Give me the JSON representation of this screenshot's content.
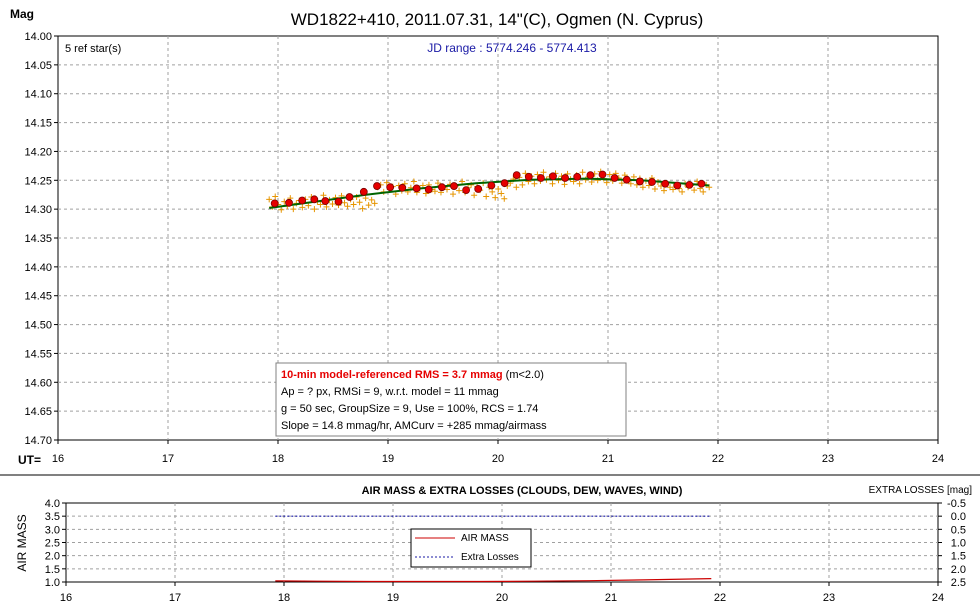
{
  "chart_data": [
    {
      "type": "scatter",
      "title": "WD1822+410, 2011.07.31, 14\"(C), Ogmen (N. Cyprus)",
      "ylabel": "Mag",
      "xlabel": "UT=",
      "xlim": [
        16,
        24
      ],
      "ylim": [
        14.7,
        14.0
      ],
      "y_inverted": true,
      "grid": true,
      "x_ticks": [
        "16",
        "17",
        "18",
        "19",
        "20",
        "21",
        "22",
        "23",
        "24"
      ],
      "y_ticks": [
        "14.00",
        "14.05",
        "14.10",
        "14.15",
        "14.20",
        "14.25",
        "14.30",
        "14.35",
        "14.40",
        "14.45",
        "14.50",
        "14.55",
        "14.60",
        "14.65",
        "14.70"
      ],
      "ref_stars_text": "5 ref star(s)",
      "jd_range_text": "JD range : 5774.246 - 5774.413",
      "annotation": {
        "line1_red": "10-min model-referenced RMS = 3.7 mmag",
        "line1_rest": " (m<2.0)",
        "line2": "Ap = ? px, RMSi = 9, w.r.t. model = 11 mmag",
        "line3": "g = 50 sec, GroupSize = 9, Use = 100%, RCS = 1.74",
        "line4": "Slope = 14.8 mmag/hr, AMCurv = +285 mmag/airmass"
      },
      "series": [
        {
          "kind": "individual",
          "marker": "plus",
          "color": "#e69500",
          "x_start": 17.92,
          "x_end": 21.92,
          "y_values": [
            14.283,
            14.296,
            14.278,
            14.292,
            14.301,
            14.287,
            14.295,
            14.281,
            14.3,
            14.29,
            14.285,
            14.297,
            14.283,
            14.294,
            14.279,
            14.3,
            14.287,
            14.292,
            14.276,
            14.296,
            14.284,
            14.291,
            14.28,
            14.293,
            14.277,
            14.289,
            14.295,
            14.283,
            14.292,
            14.279,
            14.288,
            14.299,
            14.281,
            14.293,
            14.284,
            14.29,
            14.262,
            14.258,
            14.27,
            14.254,
            14.266,
            14.261,
            14.274,
            14.259,
            14.268,
            14.256,
            14.27,
            14.263,
            14.252,
            14.271,
            14.264,
            14.259,
            14.273,
            14.258,
            14.266,
            14.269,
            14.255,
            14.271,
            14.262,
            14.266,
            14.257,
            14.274,
            14.26,
            14.268,
            14.252,
            14.271,
            14.263,
            14.258,
            14.276,
            14.261,
            14.267,
            14.255,
            14.278,
            14.262,
            14.27,
            14.28,
            14.265,
            14.273,
            14.282,
            14.26,
            14.255,
            14.248,
            14.262,
            14.245,
            14.258,
            14.238,
            14.252,
            14.243,
            14.256,
            14.24,
            14.251,
            14.236,
            14.249,
            14.244,
            14.256,
            14.238,
            14.25,
            14.243,
            14.257,
            14.239,
            14.248,
            14.252,
            14.241,
            14.256,
            14.236,
            14.249,
            14.244,
            14.253,
            14.239,
            14.25,
            14.235,
            14.247,
            14.254,
            14.24,
            14.251,
            14.238,
            14.246,
            14.255,
            14.241,
            14.25,
            14.256,
            14.244,
            14.258,
            14.247,
            14.262,
            14.251,
            14.259,
            14.246,
            14.265,
            14.253,
            14.26,
            14.268,
            14.255,
            14.262,
            14.266,
            14.258,
            14.264,
            14.27,
            14.256,
            14.262,
            14.259,
            14.267,
            14.252,
            14.264,
            14.27,
            14.258,
            14.262
          ]
        },
        {
          "kind": "group-average",
          "marker": "circle",
          "color": "#e60000",
          "x": [
            17.97,
            18.1,
            18.22,
            18.33,
            18.43,
            18.55,
            18.65,
            18.78,
            18.9,
            19.02,
            19.13,
            19.26,
            19.37,
            19.49,
            19.6,
            19.71,
            19.82,
            19.94,
            20.06,
            20.17,
            20.28,
            20.39,
            20.5,
            20.61,
            20.72,
            20.84,
            20.95,
            21.06,
            21.17,
            21.29,
            21.4,
            21.52,
            21.63,
            21.74,
            21.85
          ],
          "y": [
            14.29,
            14.289,
            14.285,
            14.283,
            14.286,
            14.287,
            14.279,
            14.27,
            14.26,
            14.262,
            14.263,
            14.264,
            14.266,
            14.262,
            14.26,
            14.267,
            14.265,
            14.259,
            14.255,
            14.241,
            14.244,
            14.246,
            14.243,
            14.246,
            14.244,
            14.241,
            14.24,
            14.246,
            14.249,
            14.252,
            14.253,
            14.256,
            14.259,
            14.258,
            14.256
          ]
        },
        {
          "kind": "model",
          "marker": "line",
          "color": "#006400",
          "x": [
            17.92,
            18.3,
            18.8,
            19.3,
            19.8,
            20.3,
            20.8,
            21.3,
            21.92
          ],
          "y": [
            14.298,
            14.288,
            14.275,
            14.264,
            14.255,
            14.249,
            14.247,
            14.25,
            14.259
          ]
        }
      ]
    },
    {
      "type": "line",
      "title": "AIR MASS & EXTRA LOSSES (CLOUDS, DEW, WAVES, WIND)",
      "ylabel": "AIR MASS",
      "ylabel_right": "EXTRA LOSSES [mag]",
      "xlim": [
        16,
        24
      ],
      "ylim": [
        1.0,
        4.0
      ],
      "ylim_right": [
        2.5,
        -0.5
      ],
      "grid": true,
      "x_ticks": [
        "16",
        "17",
        "18",
        "19",
        "20",
        "21",
        "22",
        "23",
        "24"
      ],
      "y_ticks": [
        "1.0",
        "1.5",
        "2.0",
        "2.5",
        "3.0",
        "3.5",
        "4.0"
      ],
      "y_ticks_right": [
        "-0.5",
        "0.0",
        "0.5",
        "1.0",
        "1.5",
        "2.0",
        "2.5"
      ],
      "legend": [
        "AIR MASS",
        "Extra Losses"
      ],
      "legend_position": "center",
      "series": [
        {
          "name": "AIR MASS",
          "color": "#cc0000",
          "x": [
            17.92,
            18.3,
            18.8,
            19.3,
            19.8,
            20.3,
            20.8,
            21.3,
            21.92
          ],
          "y": [
            1.04,
            1.03,
            1.02,
            1.02,
            1.02,
            1.03,
            1.05,
            1.08,
            1.13
          ]
        },
        {
          "name": "Extra Losses",
          "color": "#1a1aa6",
          "dashed": true,
          "x": [
            17.92,
            21.92
          ],
          "y": [
            0.0,
            0.0
          ]
        }
      ]
    }
  ]
}
